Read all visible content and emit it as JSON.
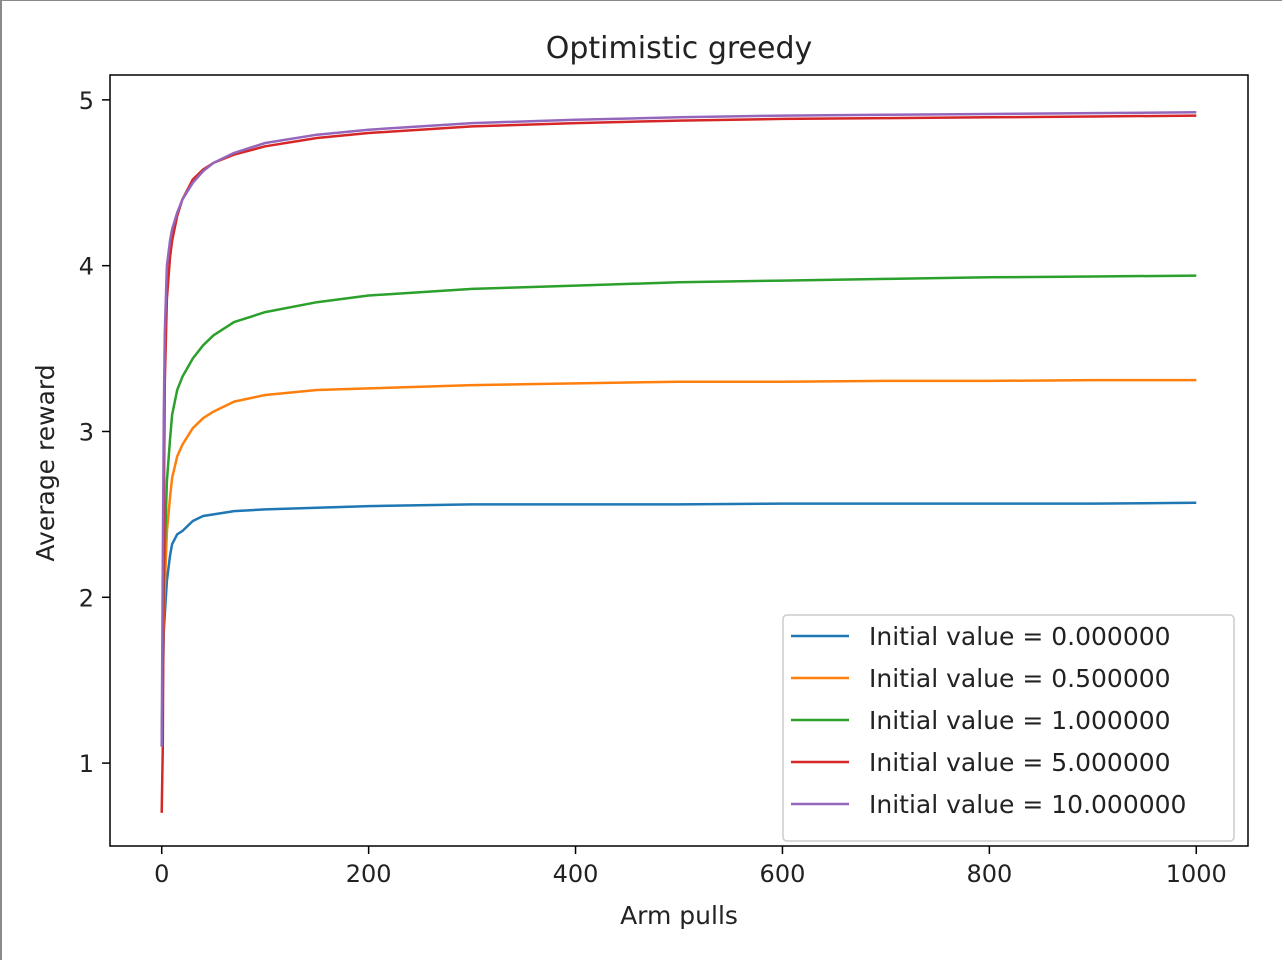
{
  "chart_data": {
    "type": "line",
    "title": "Optimistic greedy",
    "xlabel": "Arm pulls",
    "ylabel": "Average reward",
    "xlim": [
      -50,
      1050
    ],
    "ylim": [
      0.5,
      5.15
    ],
    "xticks": [
      0,
      200,
      400,
      600,
      800,
      1000
    ],
    "yticks": [
      1,
      2,
      3,
      4,
      5
    ],
    "grid": false,
    "legend_position": "lower-right",
    "series": [
      {
        "name": "Initial value = 0.000000",
        "color": "#1f77b4",
        "x": [
          0,
          2,
          5,
          8,
          10,
          15,
          20,
          30,
          40,
          50,
          70,
          100,
          150,
          200,
          300,
          400,
          500,
          600,
          700,
          800,
          900,
          1000
        ],
        "y": [
          1.1,
          1.8,
          2.1,
          2.25,
          2.32,
          2.38,
          2.4,
          2.46,
          2.49,
          2.5,
          2.52,
          2.53,
          2.54,
          2.55,
          2.56,
          2.56,
          2.56,
          2.565,
          2.565,
          2.565,
          2.565,
          2.57
        ]
      },
      {
        "name": "Initial value = 0.500000",
        "color": "#ff7f0e",
        "x": [
          0,
          2,
          5,
          8,
          10,
          15,
          20,
          30,
          40,
          50,
          70,
          100,
          150,
          200,
          300,
          400,
          500,
          600,
          700,
          800,
          900,
          1000
        ],
        "y": [
          1.1,
          1.9,
          2.4,
          2.6,
          2.72,
          2.85,
          2.92,
          3.02,
          3.08,
          3.12,
          3.18,
          3.22,
          3.25,
          3.26,
          3.28,
          3.29,
          3.3,
          3.3,
          3.305,
          3.305,
          3.31,
          3.31
        ]
      },
      {
        "name": "Initial value = 1.000000",
        "color": "#2ca02c",
        "x": [
          0,
          2,
          5,
          8,
          10,
          15,
          20,
          30,
          40,
          50,
          70,
          100,
          150,
          200,
          300,
          400,
          500,
          600,
          700,
          800,
          900,
          1000
        ],
        "y": [
          1.1,
          2.1,
          2.7,
          2.95,
          3.1,
          3.25,
          3.33,
          3.44,
          3.52,
          3.58,
          3.66,
          3.72,
          3.78,
          3.82,
          3.86,
          3.88,
          3.9,
          3.91,
          3.92,
          3.93,
          3.935,
          3.94
        ]
      },
      {
        "name": "Initial value = 5.000000",
        "color": "#d62728",
        "x": [
          0,
          1,
          2,
          3,
          5,
          8,
          10,
          15,
          20,
          30,
          40,
          50,
          70,
          100,
          150,
          200,
          300,
          400,
          500,
          600,
          700,
          800,
          900,
          1000
        ],
        "y": [
          0.7,
          1.1,
          2.5,
          3.3,
          3.8,
          4.05,
          4.15,
          4.3,
          4.4,
          4.52,
          4.58,
          4.62,
          4.67,
          4.72,
          4.77,
          4.8,
          4.84,
          4.86,
          4.875,
          4.885,
          4.89,
          4.895,
          4.9,
          4.905
        ]
      },
      {
        "name": "Initial value = 10.000000",
        "color": "#9467bd",
        "x": [
          0,
          1,
          2,
          3,
          5,
          8,
          10,
          15,
          20,
          30,
          40,
          50,
          70,
          100,
          150,
          200,
          300,
          400,
          500,
          600,
          700,
          800,
          900,
          1000
        ],
        "y": [
          1.1,
          2.2,
          3.1,
          3.6,
          4.0,
          4.15,
          4.22,
          4.32,
          4.4,
          4.5,
          4.57,
          4.62,
          4.68,
          4.74,
          4.79,
          4.82,
          4.86,
          4.88,
          4.895,
          4.905,
          4.91,
          4.915,
          4.92,
          4.925
        ]
      }
    ]
  }
}
